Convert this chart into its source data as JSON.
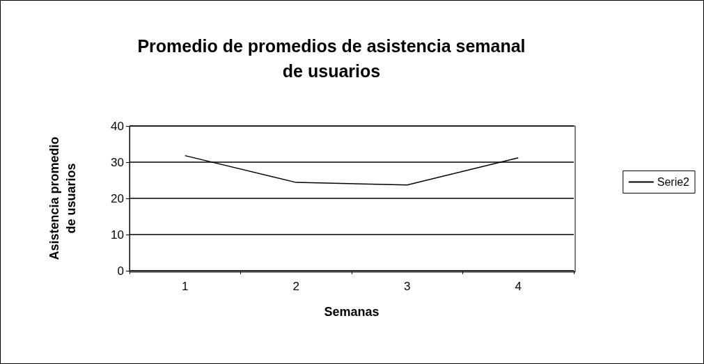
{
  "chart_data": {
    "type": "line",
    "title": "Promedio de promedios de asistencia semanal\nde usuarios",
    "xlabel": "Semanas",
    "ylabel": "Asistencia promedio\nde usuarios",
    "categories": [
      "1",
      "2",
      "3",
      "4"
    ],
    "series": [
      {
        "name": "Serie2",
        "color": "#000000",
        "values": [
          31.8,
          24.4,
          23.7,
          31.2
        ]
      }
    ],
    "ylim": [
      0,
      40
    ],
    "yticks": [
      0,
      10,
      20,
      30,
      40
    ],
    "grid": "y",
    "legend": "right",
    "marker": "none",
    "line_style": "solid"
  }
}
